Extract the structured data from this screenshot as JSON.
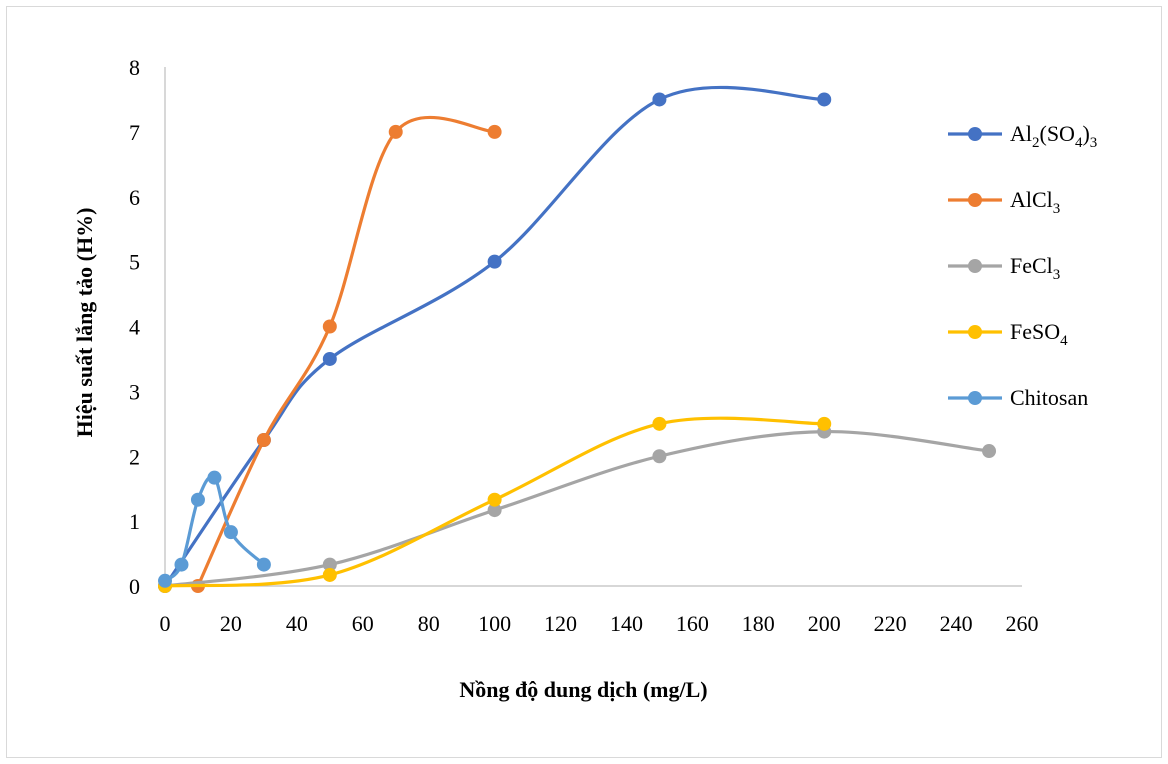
{
  "chart_data": {
    "type": "line",
    "title": "",
    "xlabel": "Nồng độ dung dịch (mg/L)",
    "ylabel": "Hiệu suất lắng tảo (H%)",
    "xlim": [
      0,
      260
    ],
    "ylim": [
      0,
      8
    ],
    "x_ticks": [
      0,
      20,
      40,
      60,
      80,
      100,
      120,
      140,
      160,
      180,
      200,
      220,
      240,
      260
    ],
    "y_ticks": [
      0,
      1,
      2,
      3,
      4,
      5,
      6,
      7,
      8
    ],
    "grid": false,
    "smooth": true,
    "legend_position": "right",
    "series": [
      {
        "name": "Al2(SO4)3",
        "legend": {
          "base": "Al",
          "parts": [
            {
              "t": "2",
              "sub": true
            },
            {
              "t": "(SO",
              "sub": false
            },
            {
              "t": "4",
              "sub": true
            },
            {
              "t": ")",
              "sub": false
            },
            {
              "t": "3",
              "sub": true
            }
          ]
        },
        "color": "#4472C4",
        "x": [
          0,
          30,
          50,
          100,
          150,
          200
        ],
        "y": [
          0,
          2.25,
          3.5,
          5.0,
          7.5,
          7.5
        ]
      },
      {
        "name": "AlCl3",
        "legend": {
          "base": "AlCl",
          "parts": [
            {
              "t": "3",
              "sub": true
            }
          ]
        },
        "color": "#ED7D31",
        "x": [
          10,
          30,
          50,
          70,
          100
        ],
        "y": [
          0,
          2.25,
          4.0,
          7.0,
          7.0
        ]
      },
      {
        "name": "FeCl3",
        "legend": {
          "base": "FeCl",
          "parts": [
            {
              "t": "3",
              "sub": true
            }
          ]
        },
        "color": "#A5A5A5",
        "x": [
          0,
          50,
          100,
          150,
          200,
          250
        ],
        "y": [
          0,
          0.33,
          1.17,
          2.0,
          2.38,
          2.08
        ]
      },
      {
        "name": "FeSO4",
        "legend": {
          "base": "FeSO",
          "parts": [
            {
              "t": "4",
              "sub": true
            }
          ]
        },
        "color": "#FFC000",
        "x": [
          0,
          50,
          100,
          150,
          200
        ],
        "y": [
          0,
          0.17,
          1.33,
          2.5,
          2.5
        ]
      },
      {
        "name": "Chitosan",
        "legend": {
          "base": "Chitosan",
          "parts": []
        },
        "color": "#5B9BD5",
        "x": [
          0,
          5,
          10,
          15,
          20,
          30
        ],
        "y": [
          0.08,
          0.33,
          1.33,
          1.67,
          0.83,
          0.33
        ]
      }
    ]
  }
}
